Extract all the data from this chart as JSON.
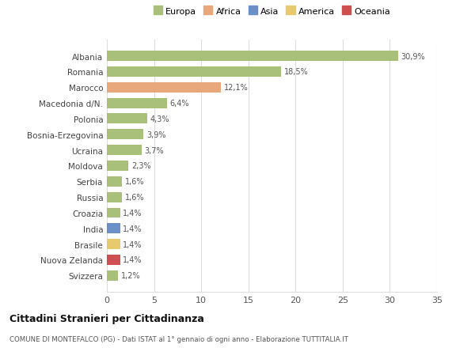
{
  "countries": [
    "Svizzera",
    "Nuova Zelanda",
    "Brasile",
    "India",
    "Croazia",
    "Russia",
    "Serbia",
    "Moldova",
    "Ucraina",
    "Bosnia-Erzegovina",
    "Polonia",
    "Macedonia d/N.",
    "Marocco",
    "Romania",
    "Albania"
  ],
  "values": [
    1.2,
    1.4,
    1.4,
    1.4,
    1.4,
    1.6,
    1.6,
    2.3,
    3.7,
    3.9,
    4.3,
    6.4,
    12.1,
    18.5,
    30.9
  ],
  "labels": [
    "1,2%",
    "1,4%",
    "1,4%",
    "1,4%",
    "1,4%",
    "1,6%",
    "1,6%",
    "2,3%",
    "3,7%",
    "3,9%",
    "4,3%",
    "6,4%",
    "12,1%",
    "18,5%",
    "30,9%"
  ],
  "colors": [
    "#a8c07a",
    "#cd4f4f",
    "#e8c96e",
    "#6b8fc7",
    "#a8c07a",
    "#a8c07a",
    "#a8c07a",
    "#a8c07a",
    "#a8c07a",
    "#a8c07a",
    "#a8c07a",
    "#a8c07a",
    "#e8a87c",
    "#a8c07a",
    "#a8c07a"
  ],
  "continent_colors": {
    "Europa": "#a8c07a",
    "Africa": "#e8a87c",
    "Asia": "#6b8fc7",
    "America": "#e8c96e",
    "Oceania": "#cd4f4f"
  },
  "title1": "Cittadini Stranieri per Cittadinanza",
  "title2": "COMUNE DI MONTEFALCO (PG) - Dati ISTAT al 1° gennaio di ogni anno - Elaborazione TUTTITALIA.IT",
  "xlim": [
    0,
    35
  ],
  "xticks": [
    0,
    5,
    10,
    15,
    20,
    25,
    30,
    35
  ],
  "bg_color": "#ffffff",
  "grid_color": "#dddddd",
  "bar_height": 0.65
}
